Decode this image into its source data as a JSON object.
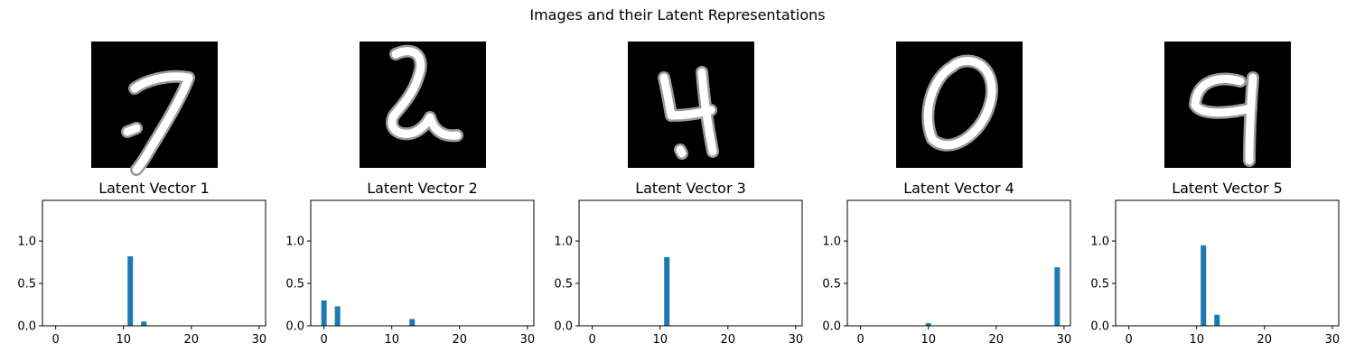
{
  "figure": {
    "title": "Images and their Latent Representations"
  },
  "digits": [
    "7",
    "2",
    "4",
    "0",
    "9"
  ],
  "chart_data": [
    {
      "type": "bar",
      "title": "Latent Vector 1",
      "xlabel": "",
      "ylabel": "",
      "xticks": [
        0,
        10,
        20,
        30
      ],
      "yticks": [
        0.0,
        0.5,
        1.0
      ],
      "xlim": [
        -1.95,
        30.95
      ],
      "ylim": [
        0,
        1.48
      ],
      "color": "#1f77b4",
      "x": [
        11,
        13
      ],
      "values": [
        0.82,
        0.05
      ]
    },
    {
      "type": "bar",
      "title": "Latent Vector 2",
      "xlabel": "",
      "ylabel": "",
      "xticks": [
        0,
        10,
        20,
        30
      ],
      "yticks": [
        0.0,
        0.5,
        1.0
      ],
      "xlim": [
        -1.95,
        30.95
      ],
      "ylim": [
        0,
        1.48
      ],
      "color": "#1f77b4",
      "x": [
        0,
        2,
        13
      ],
      "values": [
        0.3,
        0.23,
        0.08
      ]
    },
    {
      "type": "bar",
      "title": "Latent Vector 3",
      "xlabel": "",
      "ylabel": "",
      "xticks": [
        0,
        10,
        20,
        30
      ],
      "yticks": [
        0.0,
        0.5,
        1.0
      ],
      "xlim": [
        -1.95,
        30.95
      ],
      "ylim": [
        0,
        1.48
      ],
      "color": "#1f77b4",
      "x": [
        11
      ],
      "values": [
        0.81
      ]
    },
    {
      "type": "bar",
      "title": "Latent Vector 4",
      "xlabel": "",
      "ylabel": "",
      "xticks": [
        0,
        10,
        20,
        30
      ],
      "yticks": [
        0.0,
        0.5,
        1.0
      ],
      "xlim": [
        -1.95,
        30.95
      ],
      "ylim": [
        0,
        1.48
      ],
      "color": "#1f77b4",
      "x": [
        10,
        29
      ],
      "values": [
        0.03,
        0.69
      ]
    },
    {
      "type": "bar",
      "title": "Latent Vector 5",
      "xlabel": "",
      "ylabel": "",
      "xticks": [
        0,
        10,
        20,
        30
      ],
      "yticks": [
        0.0,
        0.5,
        1.0
      ],
      "xlim": [
        -1.95,
        30.95
      ],
      "ylim": [
        0,
        1.48
      ],
      "color": "#1f77b4",
      "x": [
        11,
        13
      ],
      "values": [
        0.95,
        0.13
      ]
    }
  ]
}
